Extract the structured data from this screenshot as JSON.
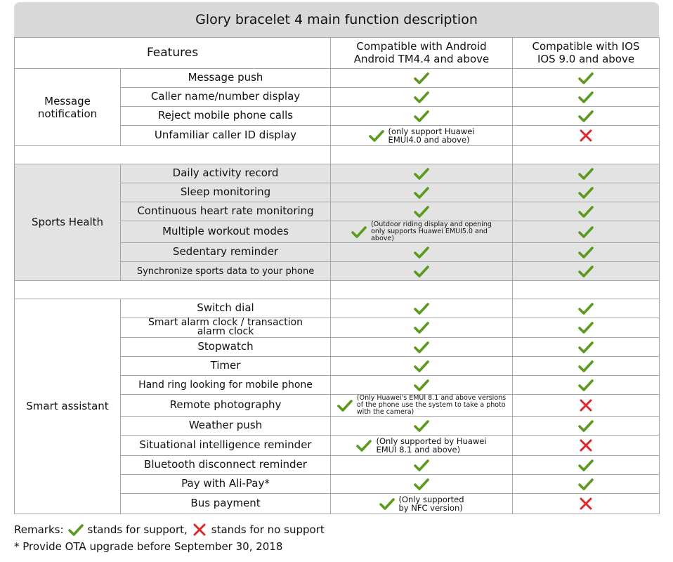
{
  "title": "Glory bracelet 4 main function description",
  "header": {
    "features": "Features",
    "android_l1": "Compatible with Android",
    "android_l2": "Android TM4.4 and above",
    "ios_l1": "Compatible with IOS",
    "ios_l2": "IOS 9.0 and above"
  },
  "groups": {
    "message": {
      "label_l1": "Message",
      "label_l2": "notification",
      "rows": [
        {
          "feature": "Message push",
          "android": "check",
          "ios": "check"
        },
        {
          "feature": "Caller name/number display",
          "android": "check",
          "ios": "check"
        },
        {
          "feature": "Reject mobile phone calls",
          "android": "check",
          "ios": "check"
        },
        {
          "feature": "Unfamiliar caller ID display",
          "android": "check",
          "android_note_l1": "(only support Huawei",
          "android_note_l2": "EMUI4.0 and above)",
          "ios": "cross"
        }
      ]
    },
    "sports": {
      "label": "Sports Health",
      "rows": [
        {
          "feature": "Daily activity record",
          "android": "check",
          "ios": "check"
        },
        {
          "feature": "Sleep monitoring",
          "android": "check",
          "ios": "check"
        },
        {
          "feature": "Continuous heart rate monitoring",
          "android": "check",
          "ios": "check"
        },
        {
          "feature": "Multiple workout modes",
          "android": "check",
          "android_note_l1": "(Outdoor riding display and opening",
          "android_note_l2": "only supports Huawei EMUI5.0 and",
          "android_note_l3": "above)",
          "ios": "check"
        },
        {
          "feature": "Sedentary reminder",
          "android": "check",
          "ios": "check"
        },
        {
          "feature": "Synchronize sports data to your phone",
          "android": "check",
          "ios": "check"
        }
      ]
    },
    "smart": {
      "label": "Smart assistant",
      "rows": [
        {
          "feature": "Switch dial",
          "android": "check",
          "ios": "check"
        },
        {
          "feature_l1": "Smart alarm clock / transaction",
          "feature_l2": "alarm clock",
          "android": "check",
          "ios": "check"
        },
        {
          "feature": "Stopwatch",
          "android": "check",
          "ios": "check"
        },
        {
          "feature": "Timer",
          "android": "check",
          "ios": "check"
        },
        {
          "feature": "Hand ring looking for mobile phone",
          "android": "check",
          "ios": "check"
        },
        {
          "feature": "Remote photography",
          "android": "check",
          "android_note_l1": "(Only Huawei's EMUI 8.1 and above versions",
          "android_note_l2": "of the phone use the system to take a photo",
          "android_note_l3": "with the camera)",
          "ios": "cross"
        },
        {
          "feature": "Weather push",
          "android": "check",
          "ios": "check"
        },
        {
          "feature": "Situational intelligence reminder",
          "android": "check",
          "android_note_l1": "(Only supported by Huawei",
          "android_note_l2": "EMUI 8.1 and above)",
          "ios": "cross"
        },
        {
          "feature": "Bluetooth disconnect reminder",
          "android": "check",
          "ios": "check"
        },
        {
          "feature": "Pay with Ali-Pay*",
          "android": "check",
          "ios": "check"
        },
        {
          "feature": "Bus payment",
          "android": "check",
          "android_note_l1": "(Only supported",
          "android_note_l2": "by NFC version)",
          "ios": "cross"
        }
      ]
    }
  },
  "remarks": {
    "label": "Remarks:",
    "support_text": "stands for support,",
    "no_support_text": "stands for no support",
    "footnote": "* Provide OTA upgrade before September 30, 2018"
  },
  "colors": {
    "check": "#5a9a1c",
    "cross": "#e0262b",
    "title_bg": "#d9d9d9",
    "gray_bg": "#e3e3e3"
  }
}
